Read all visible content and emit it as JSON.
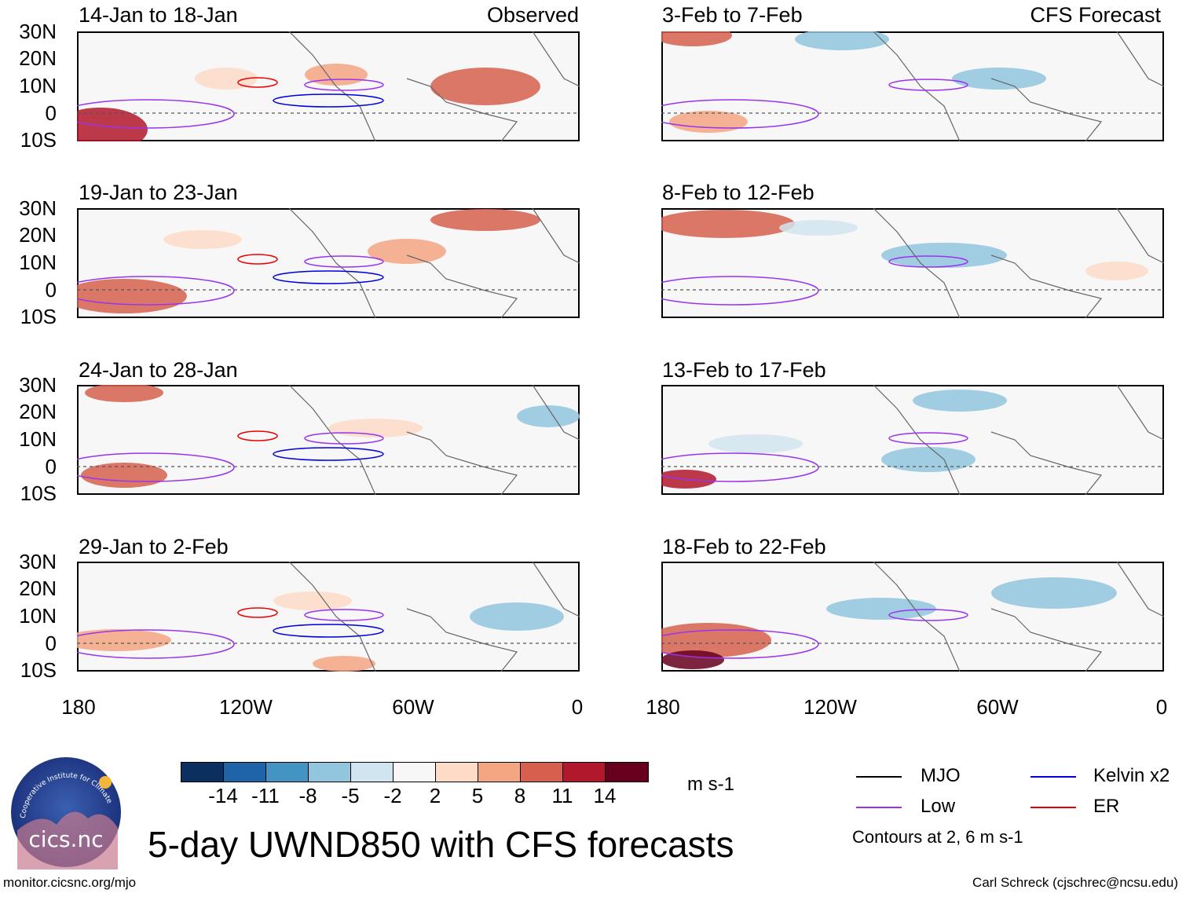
{
  "headers": {
    "left": "Observed",
    "right": "CFS Forecast"
  },
  "panels_left": [
    {
      "title": "14-Jan to 18-Jan"
    },
    {
      "title": "19-Jan to 23-Jan"
    },
    {
      "title": "24-Jan to 28-Jan"
    },
    {
      "title": "29-Jan to 2-Feb"
    }
  ],
  "panels_right": [
    {
      "title": "3-Feb to 7-Feb"
    },
    {
      "title": "8-Feb to 12-Feb"
    },
    {
      "title": "13-Feb to 17-Feb"
    },
    {
      "title": "18-Feb to 22-Feb"
    }
  ],
  "lat_labels": [
    "30N",
    "20N",
    "10N",
    "0",
    "10S"
  ],
  "lon_labels": [
    "180",
    "120W",
    "60W",
    "0"
  ],
  "colorbar": {
    "ticks": [
      "-14",
      "-11",
      "-8",
      "-5",
      "-2",
      "2",
      "5",
      "8",
      "11",
      "14"
    ],
    "colors": [
      "#0b2f5e",
      "#1f63a8",
      "#4393c3",
      "#92c5de",
      "#d1e5f0",
      "#f7f7f7",
      "#fddbc7",
      "#f4a582",
      "#d6604d",
      "#b2182b",
      "#67001f"
    ],
    "units": "m s-1"
  },
  "main_title": "5-day UWND850 with CFS forecasts",
  "legend": {
    "items": [
      {
        "label": "MJO",
        "color": "#000000"
      },
      {
        "label": "Kelvin x2",
        "color": "#0000dd"
      },
      {
        "label": "Low",
        "color": "#9933ee"
      },
      {
        "label": "ER",
        "color": "#ee0000"
      }
    ],
    "contours_note": "Contours at 2, 6 m s-1"
  },
  "logo_text": "cics.nc",
  "logo_ring_text": "Cooperative Institute for Climate and Satellites",
  "footer": {
    "left": "monitor.cicsnc.org/mjo",
    "right": "Carl Schreck (cjschrec@ncsu.edu)"
  }
}
